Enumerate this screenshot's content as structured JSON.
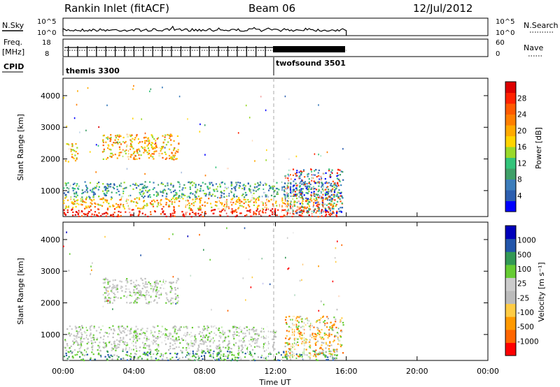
{
  "header": {
    "station": "Rankin Inlet (fitACF)",
    "beam": "Beam 06",
    "date": "12/Jul/2012"
  },
  "top_panels": {
    "nsky_label": "N.Sky",
    "nsearch_label": "N.Search",
    "nsky_ticks": [
      "10^5",
      "10^0"
    ],
    "nsky_right_ticks": [
      "10^5",
      "10^0"
    ],
    "freq_label": "Freq.",
    "freq_unit": "[MHz]",
    "freq_ticks": [
      "18",
      "8"
    ],
    "nave_label": "Nave",
    "nave_ticks": [
      "60",
      "0"
    ],
    "cpid_label": "CPID",
    "cpid_segments": [
      {
        "name": "themis 3300",
        "start_hour": 0,
        "end_hour": 12
      },
      {
        "name": "twofsound 3501",
        "start_hour": 12,
        "end_hour": 16
      }
    ]
  },
  "x_axis": {
    "label": "Time UT",
    "ticks": [
      "00:00",
      "04:00",
      "08:00",
      "12:00",
      "16:00",
      "20:00",
      "00:00"
    ],
    "tick_hours": [
      0,
      4,
      8,
      12,
      16,
      20,
      24
    ],
    "range_hours": [
      0,
      24
    ],
    "data_end_hour": 16
  },
  "chart_data": [
    {
      "type": "heatmap",
      "title": "",
      "xlabel": "",
      "ylabel": "Slant Range [km]",
      "ylim": [
        180,
        4550
      ],
      "y_ticks": [
        "4000",
        "3000",
        "2000",
        "1000"
      ],
      "y_tick_values": [
        4000,
        3000,
        2000,
        1000
      ],
      "colorbar": {
        "label": "Power [dB]",
        "tick_labels": [
          "28",
          "24",
          "20",
          "16",
          "12",
          "8",
          "4"
        ],
        "colors": [
          "#0000ff",
          "#2d5fb0",
          "#3c7dbb",
          "#3fa068",
          "#33c47a",
          "#9ad92a",
          "#ffd400",
          "#ffaa00",
          "#ff7f00",
          "#ff5a00",
          "#ff2200",
          "#dd0000"
        ]
      },
      "regions": [
        {
          "x": [
            0,
            15.5
          ],
          "y": [
            200,
            450
          ],
          "level": "high"
        },
        {
          "x": [
            0,
            15.5
          ],
          "y": [
            450,
            800
          ],
          "level": "medium"
        },
        {
          "x": [
            0,
            15.5
          ],
          "y": [
            800,
            1300
          ],
          "level": "low"
        },
        {
          "x": [
            12.5,
            15.8
          ],
          "y": [
            300,
            1700
          ],
          "level": "mixed"
        },
        {
          "x": [
            2.2,
            6.5
          ],
          "y": [
            2000,
            2800
          ],
          "level": "medium"
        },
        {
          "x": [
            0.1,
            0.8
          ],
          "y": [
            1900,
            2500
          ],
          "level": "medium"
        }
      ]
    },
    {
      "type": "heatmap",
      "title": "",
      "xlabel": "Time UT",
      "ylabel": "Slant Range [km]",
      "ylim": [
        180,
        4550
      ],
      "y_ticks": [
        "4000",
        "3000",
        "2000",
        "1000"
      ],
      "y_tick_values": [
        4000,
        3000,
        2000,
        1000
      ],
      "colorbar": {
        "label": "Velocity [m s⁻¹]",
        "tick_labels": [
          "1000",
          "500",
          "100",
          "25",
          "-25",
          "-100",
          "-500",
          "-1000"
        ],
        "colors": [
          "#ff0000",
          "#ff6600",
          "#ff9900",
          "#ffcc44",
          "#bbbbbb",
          "#cccccc",
          "#66cc33",
          "#339955",
          "#2255aa",
          "#0000bb"
        ]
      },
      "regions": [
        {
          "x": [
            0,
            15.5
          ],
          "y": [
            200,
            500
          ],
          "level": "positive"
        },
        {
          "x": [
            0,
            12
          ],
          "y": [
            500,
            1300
          ],
          "level": "near-zero"
        },
        {
          "x": [
            12.5,
            15.8
          ],
          "y": [
            300,
            1600
          ],
          "level": "negative"
        },
        {
          "x": [
            2.2,
            6.5
          ],
          "y": [
            2000,
            2800
          ],
          "level": "near-zero"
        }
      ]
    }
  ]
}
